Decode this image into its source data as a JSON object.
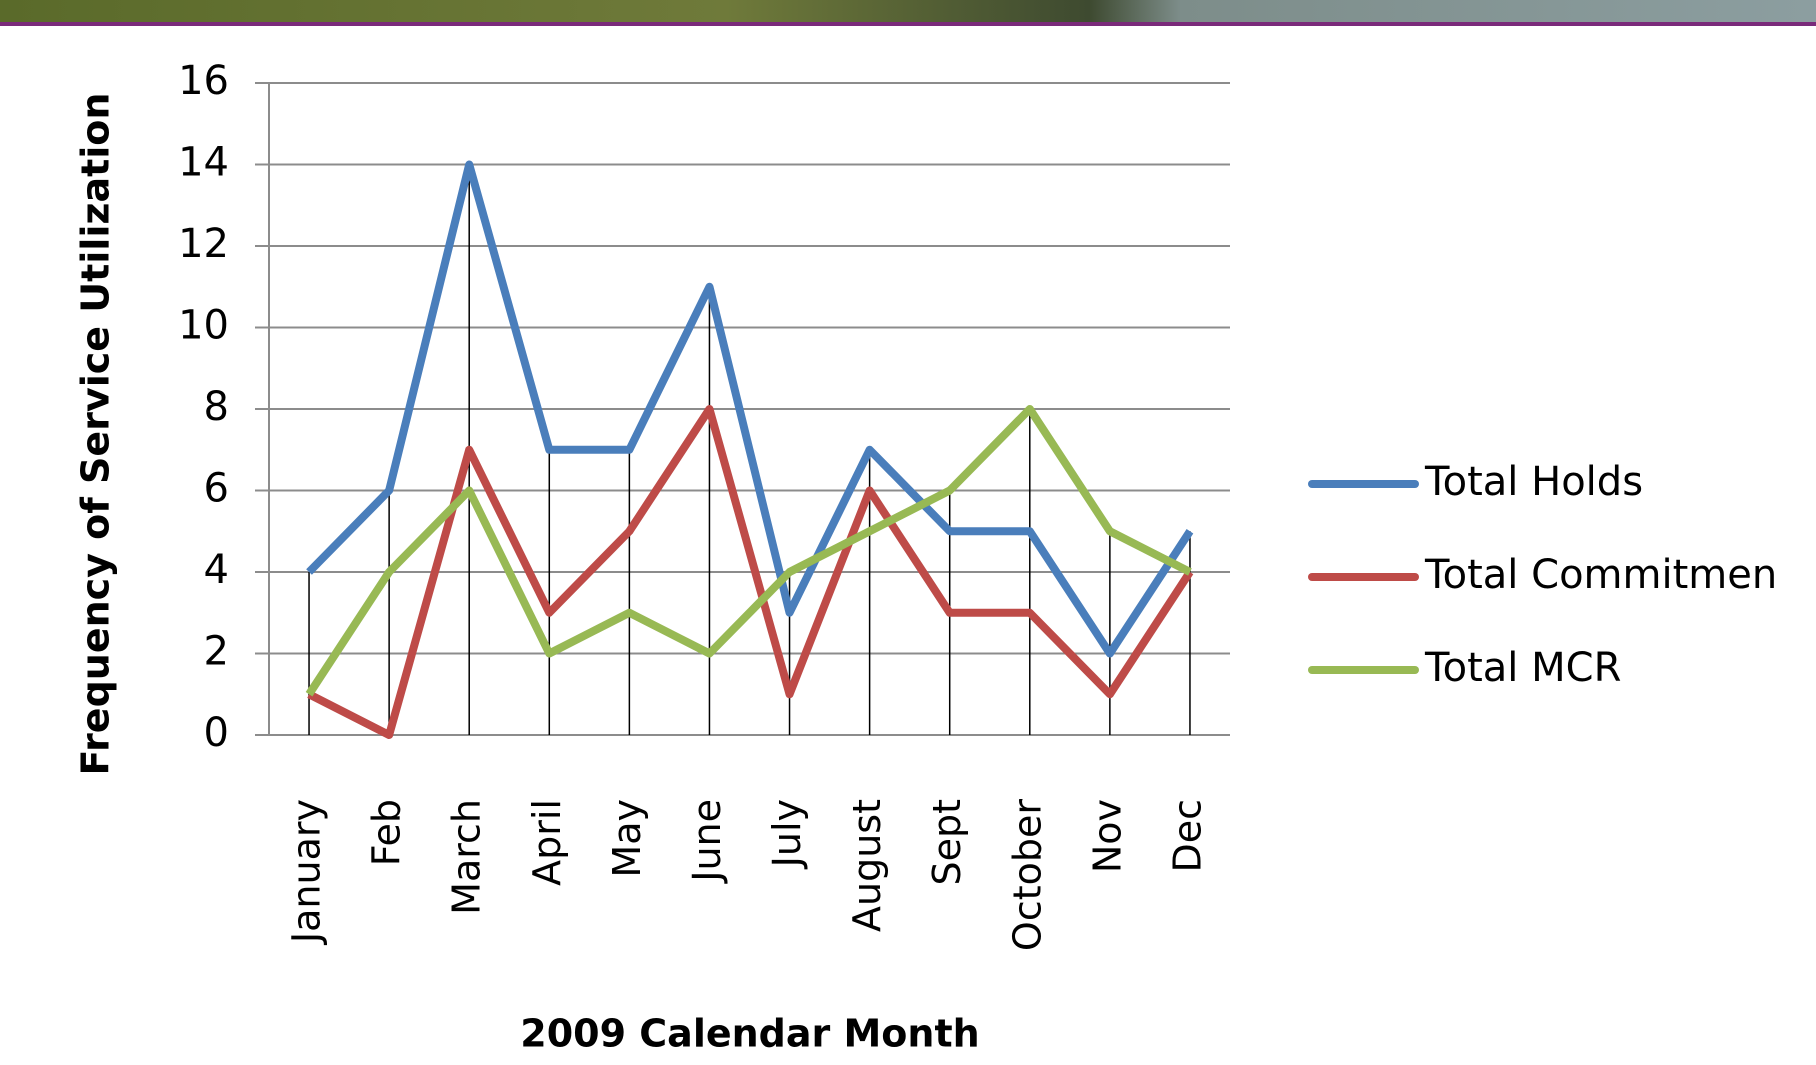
{
  "chart_data": {
    "type": "line",
    "x_label": "2009 Calendar Month",
    "y_label": "Frequency of Service Utilization",
    "categories": [
      "January",
      "Feb",
      "March",
      "April",
      "May",
      "June",
      "July",
      "August",
      "Sept",
      "October",
      "Nov",
      "Dec"
    ],
    "series": [
      {
        "name": "Total Holds",
        "color": "#4a7ebb",
        "values": [
          4,
          6,
          14,
          7,
          7,
          11,
          3,
          7,
          5,
          5,
          2,
          5
        ]
      },
      {
        "name": "Total Commitmen",
        "color": "#be4b48",
        "values": [
          1,
          0,
          7,
          3,
          5,
          8,
          1,
          6,
          3,
          3,
          1,
          4
        ]
      },
      {
        "name": "Total MCR",
        "color": "#98b954",
        "values": [
          1,
          4,
          6,
          2,
          3,
          2,
          4,
          5,
          6,
          8,
          5,
          4
        ]
      }
    ],
    "ylim": [
      0,
      16
    ],
    "yticks": [
      0,
      2,
      4,
      6,
      8,
      10,
      12,
      14,
      16
    ],
    "grid": true,
    "legend": "right"
  }
}
